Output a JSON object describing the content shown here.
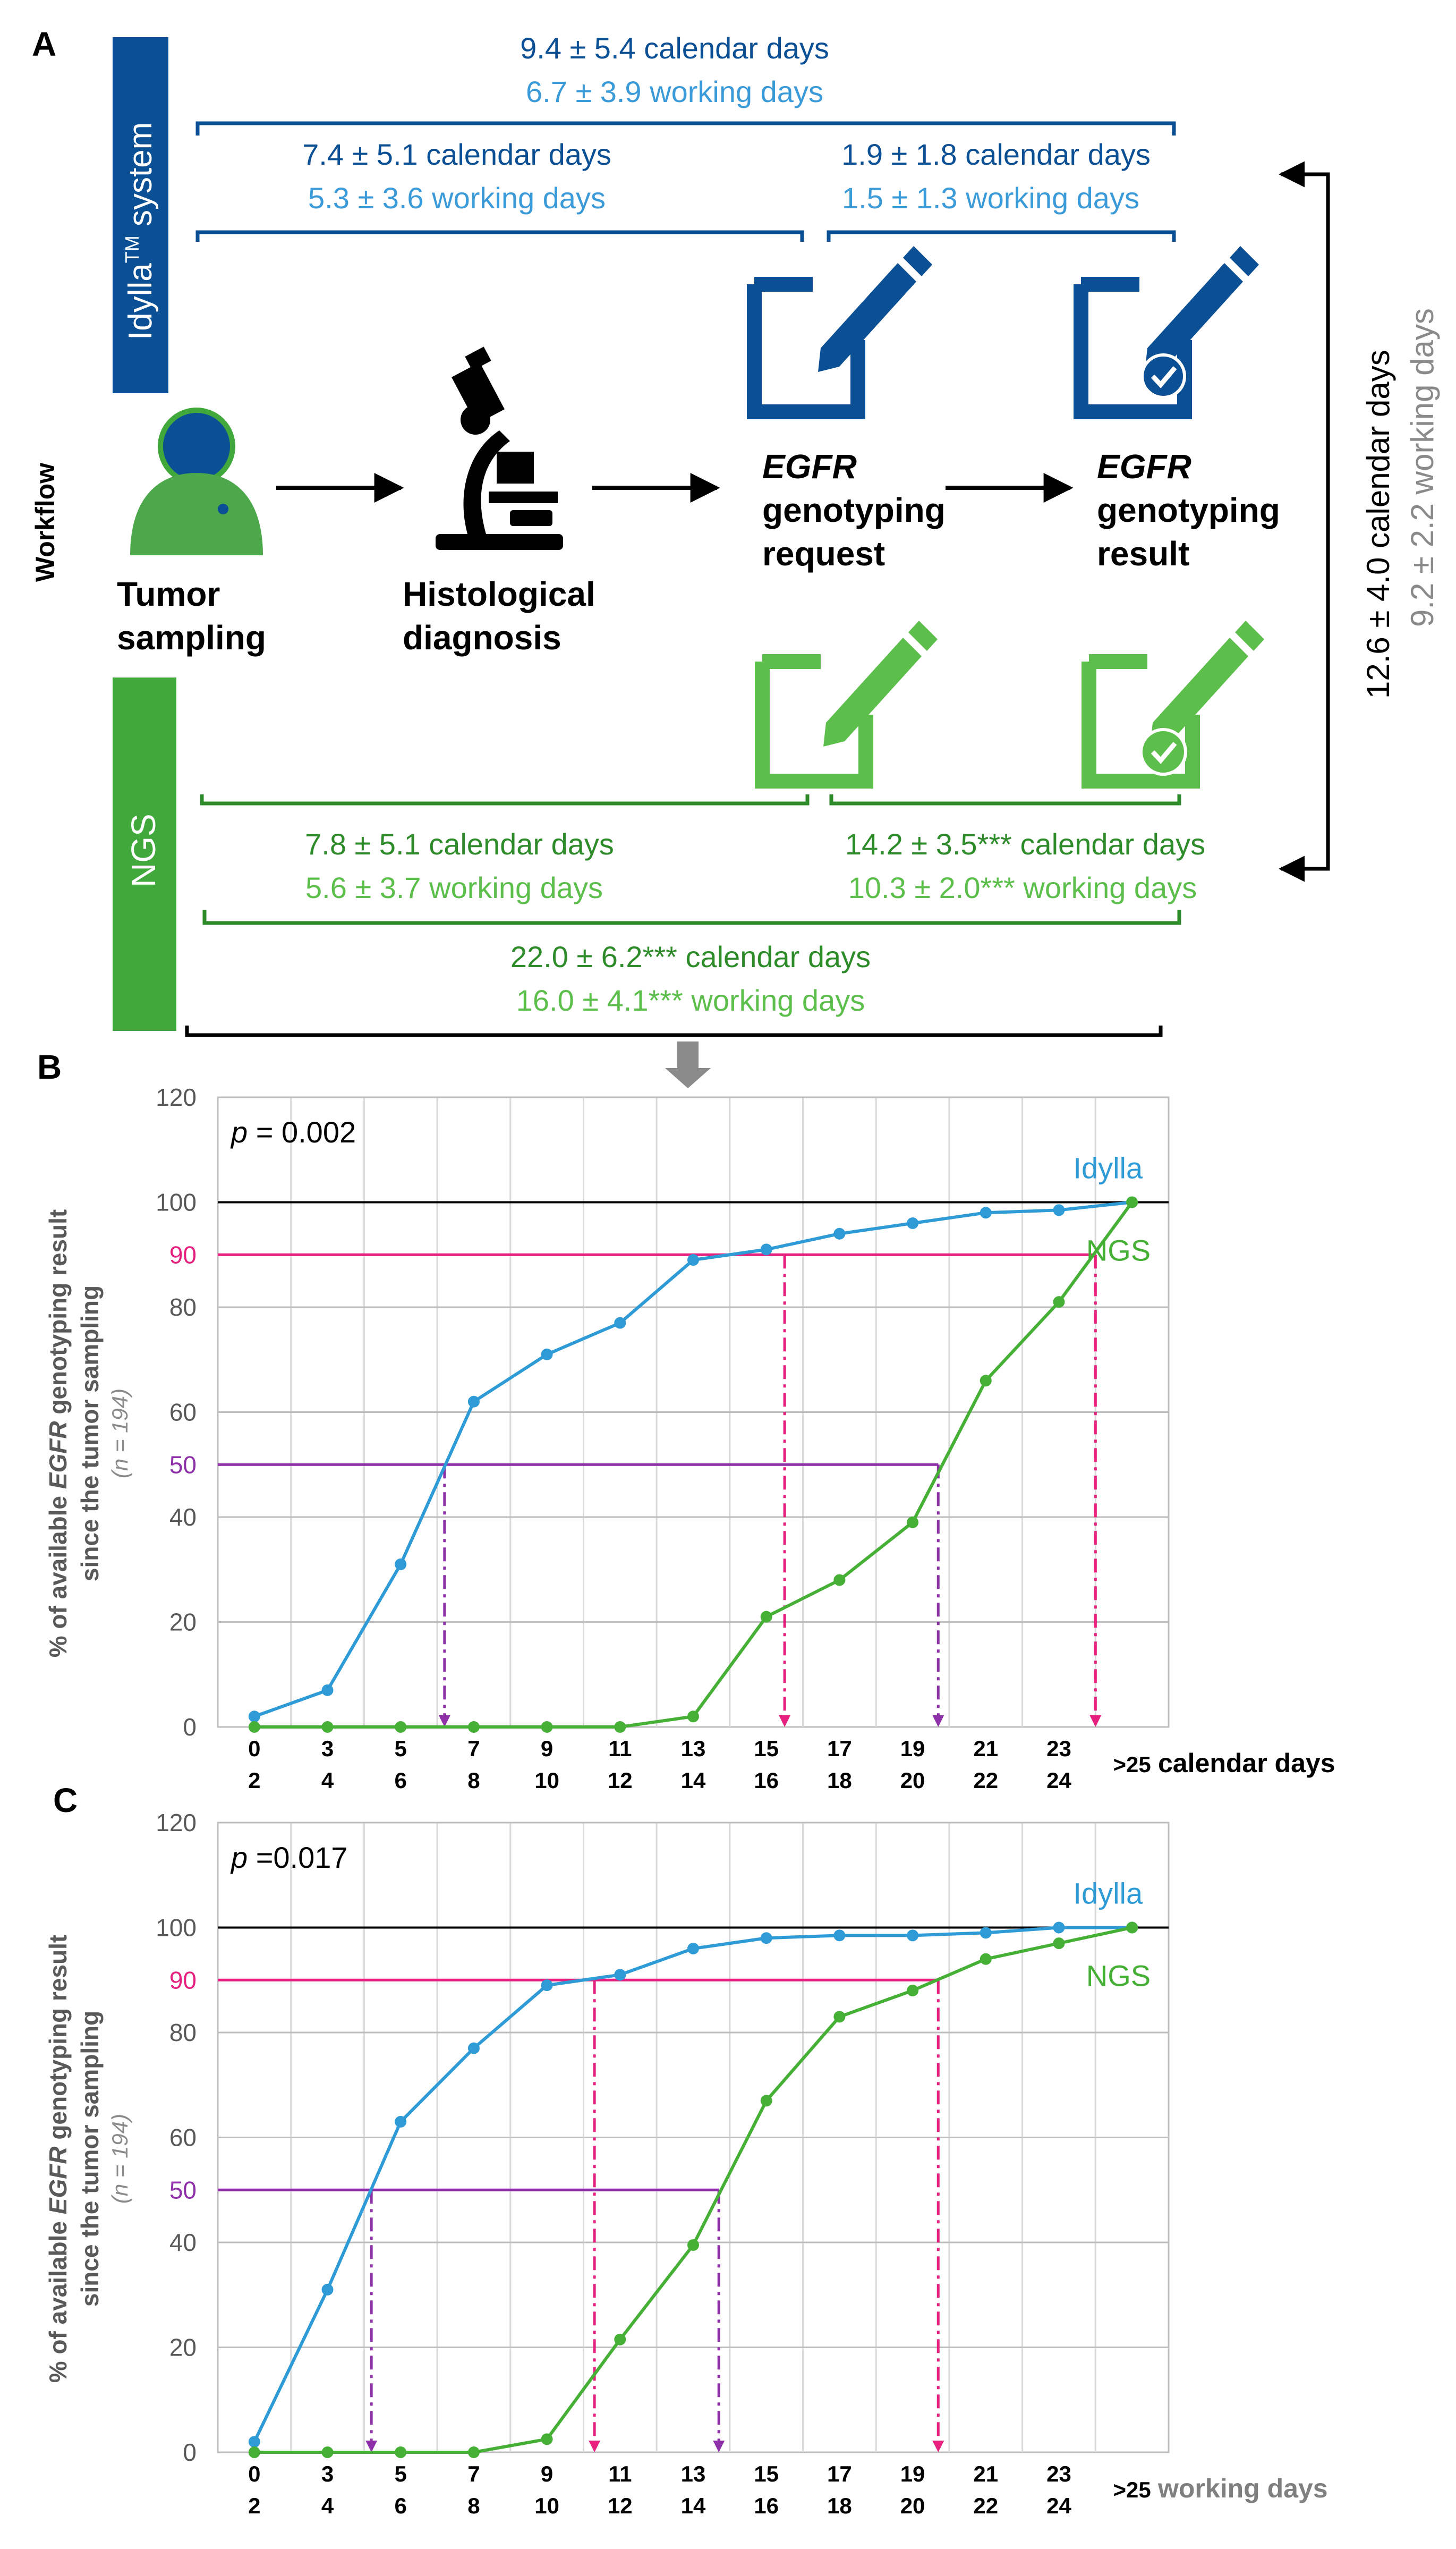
{
  "panel_a": {
    "label": "A",
    "workflow_label": "Workflow",
    "idylla_bar": {
      "label_main": "Idylla",
      "label_sup": "TM",
      "label_rest": " system",
      "color": "#0b4f94"
    },
    "ngs_bar": {
      "label": "NGS",
      "color": "#41a93b"
    },
    "steps": {
      "tumor": [
        "Tumor",
        "sampling"
      ],
      "histology": [
        "Histological",
        "diagnosis"
      ],
      "request": [
        "EGFR",
        "genotyping",
        "request"
      ],
      "result": [
        "EGFR",
        "genotyping",
        "result"
      ]
    },
    "idylla_intervals": {
      "total": {
        "calendar": "9.4 ± 5.4 calendar days",
        "working": "6.7 ± 3.9 working days"
      },
      "to_request": {
        "calendar": "7.4 ± 5.1 calendar days",
        "working": "5.3 ± 3.6 working days"
      },
      "to_result": {
        "calendar": "1.9 ± 1.8 calendar days",
        "working": "1.5 ± 1.3 working days"
      }
    },
    "ngs_intervals": {
      "to_request": {
        "calendar": "7.8 ± 5.1 calendar days",
        "working": "5.6 ± 3.7 working days"
      },
      "to_result": {
        "calendar": "14.2 ± 3.5*** calendar days",
        "working": "10.3 ± 2.0*** working days"
      },
      "total": {
        "calendar": "22.0 ± 6.2*** calendar days",
        "working": "16.0 ± 4.1*** working days"
      }
    },
    "difference": {
      "calendar": "12.6 ± 4.0 calendar days",
      "working": "9.2 ± 2.2 working days"
    },
    "colors": {
      "idylla_dark": "#0b4f94",
      "idylla_light": "#3b9ad8",
      "ngs_dark": "#2e8b2a",
      "ngs_light": "#5cbf4b",
      "working_grey": "#8a8a8a"
    }
  },
  "chart_data": [
    {
      "panel": "B",
      "type": "line",
      "title": "",
      "p_label": "p",
      "p_value": " = 0.002",
      "ylabel_pre": "% of available ",
      "ylabel_gene": "EGFR",
      "ylabel_post": " genotyping result",
      "ylabel_line2": "since the tumor sampling",
      "ylabel_n": "(n = 194)",
      "ylim": [
        0,
        120
      ],
      "y_ticks": [
        "0",
        "20",
        "40",
        "60",
        "80",
        "100",
        "120"
      ],
      "y_ticks_values": [
        0,
        20,
        40,
        60,
        80,
        100,
        120
      ],
      "x_categories": [
        [
          "0",
          "2"
        ],
        [
          "3",
          "4"
        ],
        [
          "5",
          "6"
        ],
        [
          "7",
          "8"
        ],
        [
          "9",
          "10"
        ],
        [
          "11",
          "12"
        ],
        [
          "13",
          "14"
        ],
        [
          "15",
          "16"
        ],
        [
          "17",
          "18"
        ],
        [
          "19",
          "20"
        ],
        [
          "21",
          "22"
        ],
        [
          "23",
          "24"
        ],
        [
          ">25",
          ""
        ]
      ],
      "xlabel": "calendar days",
      "xlabel_bold": true,
      "series": [
        {
          "name": "Idylla",
          "color": "#2e9bd6",
          "values": [
            2,
            7,
            31,
            62,
            71,
            77,
            89,
            91,
            94,
            96,
            98,
            98.5,
            100
          ]
        },
        {
          "name": "NGS",
          "color": "#45b035",
          "values": [
            0,
            0,
            0,
            0,
            0,
            0,
            2,
            21,
            28,
            39,
            66,
            81,
            100
          ]
        }
      ],
      "reference_lines": [
        {
          "label": "90",
          "value": 90,
          "color": "#e5207e",
          "hits": [
            7.25,
            11.5
          ]
        },
        {
          "label": "50",
          "value": 50,
          "color": "#8e30a8",
          "hits": [
            2.6,
            9.35
          ]
        }
      ]
    },
    {
      "panel": "C",
      "type": "line",
      "title": "",
      "p_label": "p",
      "p_value": " =0.017",
      "ylabel_pre": "% of available ",
      "ylabel_gene": "EGFR",
      "ylabel_post": " genotyping result",
      "ylabel_line2": "since the tumor sampling",
      "ylabel_n": "(n = 194)",
      "ylim": [
        0,
        120
      ],
      "y_ticks": [
        "0",
        "20",
        "40",
        "60",
        "80",
        "100",
        "120"
      ],
      "y_ticks_values": [
        0,
        20,
        40,
        60,
        80,
        100,
        120
      ],
      "x_categories": [
        [
          "0",
          "2"
        ],
        [
          "3",
          "4"
        ],
        [
          "5",
          "6"
        ],
        [
          "7",
          "8"
        ],
        [
          "9",
          "10"
        ],
        [
          "11",
          "12"
        ],
        [
          "13",
          "14"
        ],
        [
          "15",
          "16"
        ],
        [
          "17",
          "18"
        ],
        [
          "19",
          "20"
        ],
        [
          "21",
          "22"
        ],
        [
          "23",
          "24"
        ],
        [
          ">25",
          ""
        ]
      ],
      "xlabel": "working days",
      "xlabel_bold": true,
      "series": [
        {
          "name": "Idylla",
          "color": "#2e9bd6",
          "values": [
            2,
            31,
            63,
            77,
            89,
            91,
            96,
            98,
            98.5,
            98.5,
            99,
            100,
            100
          ]
        },
        {
          "name": "NGS",
          "color": "#45b035",
          "values": [
            0,
            0,
            0,
            0,
            2.5,
            21.5,
            39.5,
            67,
            83,
            88,
            94,
            97,
            100
          ]
        }
      ],
      "reference_lines": [
        {
          "label": "90",
          "value": 90,
          "color": "#e5207e",
          "hits": [
            4.65,
            9.35
          ]
        },
        {
          "label": "50",
          "value": 50,
          "color": "#8e30a8",
          "hits": [
            1.6,
            6.35
          ]
        }
      ]
    }
  ],
  "panel_labels": {
    "b": "B",
    "c": "C"
  }
}
